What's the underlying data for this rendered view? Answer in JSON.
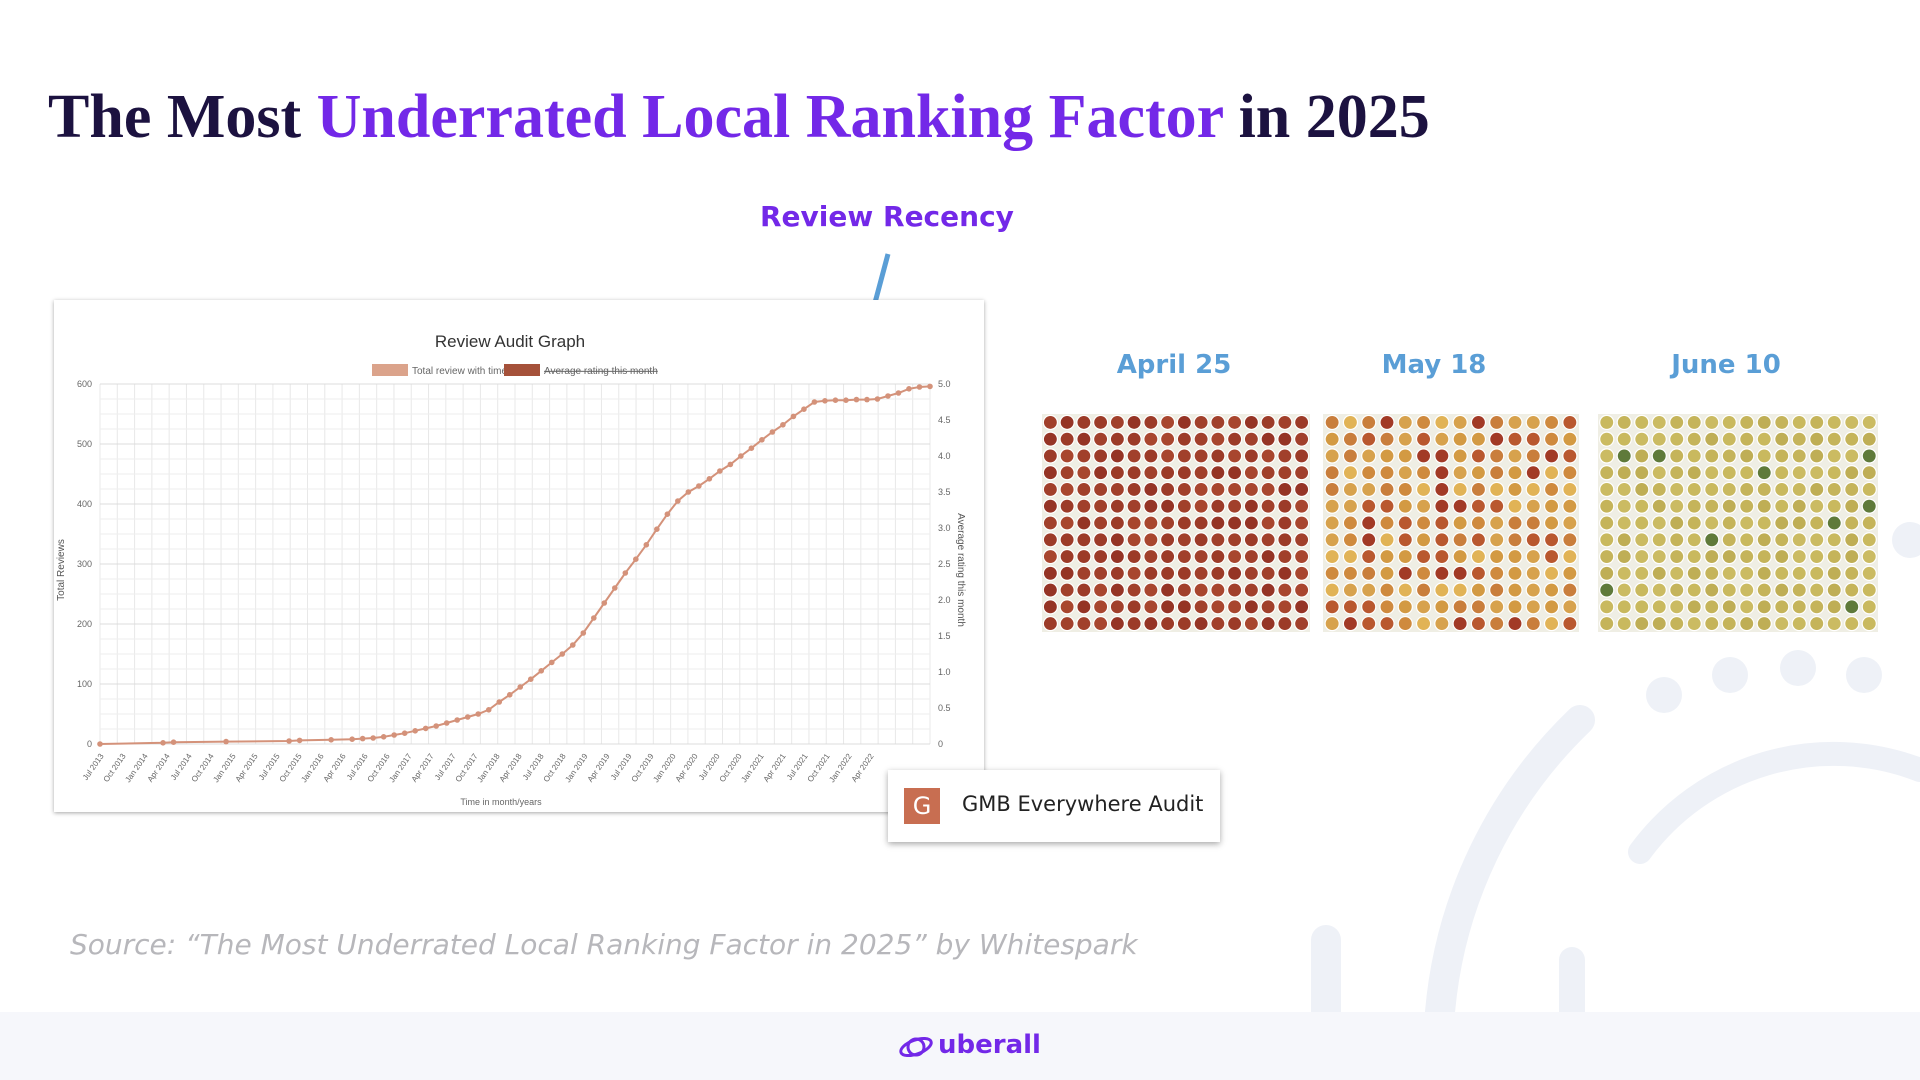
{
  "slide": {
    "title_part1": "The Most ",
    "title_accent": "Underrated Local Ranking Factor",
    "title_part2": " in 2025",
    "callout": "Review Recency",
    "source": "Source: “The Most Underrated Local Ranking Factor in 2025” by Whitespark",
    "brand": "uberall",
    "badge_letter": "G",
    "badge_label": "GMB Everywhere Audit"
  },
  "colors": {
    "title": "#1c1240",
    "accent": "#7328e8",
    "line": "#d4927a",
    "legend_total": "#dba38b",
    "legend_avg": "#a5513a",
    "arrow": "#5a9ed6"
  },
  "chart_data": {
    "type": "line",
    "title": "Review Audit Graph",
    "legend": [
      "Total review with time",
      "Average rating this month"
    ],
    "xlabel": "Time in month/years",
    "ylabel": "Total Reviews",
    "y2label": "Average rating this month",
    "ylim": [
      0,
      600
    ],
    "y2lim": [
      0,
      5
    ],
    "yticks": [
      "0",
      "100",
      "200",
      "300",
      "400",
      "500",
      "600"
    ],
    "y2ticks": [
      "0",
      "0.5",
      "1.0",
      "1.5",
      "2.0",
      "2.5",
      "3.0",
      "3.5",
      "4.0",
      "4.5",
      "5.0"
    ],
    "categories": [
      "Jul 2013",
      "Oct 2013",
      "Jan 2014",
      "Apr 2014",
      "Jul 2014",
      "Oct 2014",
      "Jan 2015",
      "Apr 2015",
      "Jul 2015",
      "Oct 2015",
      "Jan 2016",
      "Apr 2016",
      "Jul 2016",
      "Oct 2016",
      "Jan 2017",
      "Apr 2017",
      "Jul 2017",
      "Oct 2017",
      "Jan 2018",
      "Apr 2018",
      "Jul 2018",
      "Oct 2018",
      "Jan 2019",
      "Apr 2019",
      "Jul 2019",
      "Oct 2019",
      "Jan 2020",
      "Apr 2020",
      "Jul 2020",
      "Oct 2020",
      "Jan 2021",
      "Apr 2021",
      "Jul 2021",
      "Oct 2021",
      "Jan 2022",
      "Apr 2022"
    ],
    "series": [
      {
        "name": "Total review with time",
        "points": [
          [
            0,
            0
          ],
          [
            6,
            2
          ],
          [
            7,
            3
          ],
          [
            12,
            4
          ],
          [
            18,
            5
          ],
          [
            19,
            6
          ],
          [
            22,
            7
          ],
          [
            24,
            8
          ],
          [
            25,
            9
          ],
          [
            26,
            10
          ],
          [
            27,
            12
          ],
          [
            28,
            15
          ],
          [
            29,
            18
          ],
          [
            30,
            22
          ],
          [
            31,
            26
          ],
          [
            32,
            30
          ],
          [
            33,
            35
          ],
          [
            34,
            40
          ],
          [
            35,
            45
          ],
          [
            36,
            50
          ],
          [
            37,
            57
          ],
          [
            38,
            70
          ],
          [
            39,
            82
          ],
          [
            40,
            95
          ],
          [
            41,
            108
          ],
          [
            42,
            122
          ],
          [
            43,
            136
          ],
          [
            44,
            150
          ],
          [
            45,
            165
          ],
          [
            46,
            185
          ],
          [
            47,
            210
          ],
          [
            48,
            235
          ],
          [
            49,
            260
          ],
          [
            50,
            285
          ],
          [
            51,
            308
          ],
          [
            52,
            332
          ],
          [
            53,
            358
          ],
          [
            54,
            383
          ],
          [
            55,
            405
          ],
          [
            56,
            420
          ],
          [
            57,
            430
          ],
          [
            58,
            442
          ],
          [
            59,
            455
          ],
          [
            60,
            466
          ],
          [
            61,
            480
          ],
          [
            62,
            493
          ],
          [
            63,
            507
          ],
          [
            64,
            520
          ],
          [
            65,
            532
          ],
          [
            66,
            546
          ],
          [
            67,
            558
          ],
          [
            68,
            570
          ],
          [
            69,
            572
          ],
          [
            70,
            573
          ],
          [
            71,
            573
          ],
          [
            72,
            574
          ],
          [
            73,
            574
          ],
          [
            74,
            575
          ],
          [
            75,
            580
          ],
          [
            76,
            585
          ],
          [
            77,
            592
          ],
          [
            78,
            595
          ],
          [
            79,
            596
          ]
        ]
      },
      {
        "name": "Average rating this month",
        "points": []
      }
    ],
    "x_max_index": 79
  },
  "heatmaps": [
    {
      "label": "April 25",
      "style": "red",
      "cols": 16,
      "rows": 13
    },
    {
      "label": "May 18",
      "style": "mixed",
      "cols": 14,
      "rows": 13
    },
    {
      "label": "June 10",
      "style": "yellow",
      "cols": 16,
      "rows": 13
    }
  ]
}
